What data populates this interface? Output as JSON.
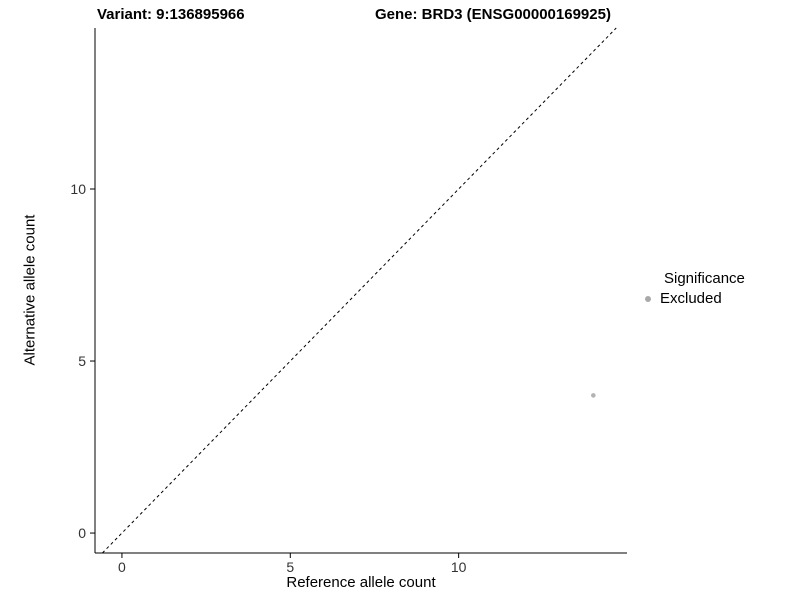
{
  "chart_data": {
    "type": "scatter",
    "title_left": "Variant: 9:136895966",
    "title_right": "Gene: BRD3 (ENSG00000169925)",
    "xlabel": "Reference allele count",
    "ylabel": "Alternative allele count",
    "xlim": [
      -0.8,
      15.0
    ],
    "ylim": [
      -0.58,
      14.68
    ],
    "xticks": [
      0,
      5,
      10
    ],
    "yticks": [
      0,
      5,
      10
    ],
    "grid": false,
    "identity_line": {
      "style": "dashed",
      "color": "#000000",
      "slope": 1,
      "intercept": 0
    },
    "points": [
      {
        "x": 14,
        "y": 4,
        "significance": "Excluded",
        "color": "#b3b3b3"
      }
    ],
    "legend": {
      "position": "right",
      "title": "Significance",
      "entries": [
        {
          "label": "Excluded",
          "color": "#a9a9a9"
        }
      ]
    },
    "colors": {
      "axis": "#000000",
      "tick_text": "#333333",
      "background": "#ffffff"
    }
  }
}
